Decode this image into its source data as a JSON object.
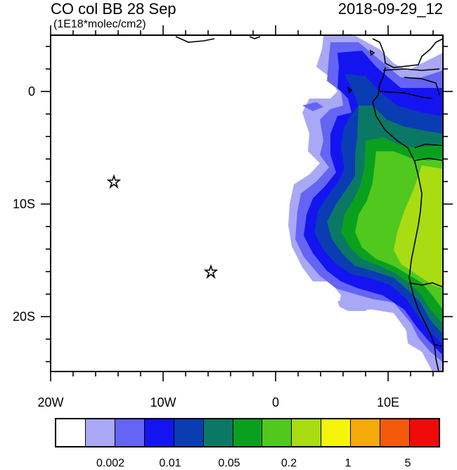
{
  "header": {
    "title": "CO col BB 28 Sep",
    "units": "(1E18*molec/cm2)",
    "datetime": "2018-09-29_12"
  },
  "axes": {
    "lat_labels": [
      "0",
      "10S",
      "20S"
    ],
    "lon_labels": [
      "20W",
      "10W",
      "0",
      "10E"
    ]
  },
  "colorbar": {
    "colors": [
      "#ffffff",
      "#a8a8f5",
      "#6464f5",
      "#1414f0",
      "#0a3cb4",
      "#0a7864",
      "#0aa01e",
      "#50c81e",
      "#aadc14",
      "#f5f50a",
      "#f5aa0a",
      "#f55a0a",
      "#f00a0a"
    ],
    "labels": [
      "0.002",
      "0.01",
      "0.05",
      "0.2",
      "1",
      "5"
    ]
  },
  "markers": [
    {
      "name": "star-8s",
      "lon": -14.3,
      "lat": -8.0
    },
    {
      "name": "star-16s",
      "lon": -5.7,
      "lat": -16.0
    }
  ]
}
